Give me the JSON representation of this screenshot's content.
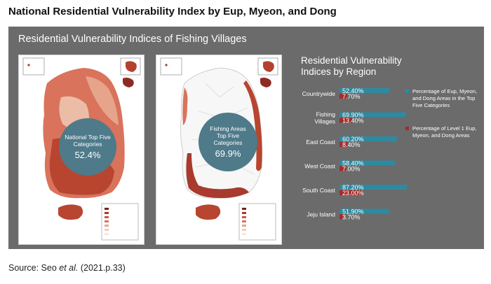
{
  "figure": {
    "title": "National Residential Vulnerability Index by Eup, Myeon, and Dong",
    "panel_title": "Residential Vulnerability Indices of Fishing Villages",
    "source_prefix": "Source: Seo ",
    "source_italic": "et al.",
    "source_suffix": " (2021.p.33)"
  },
  "maps": [
    {
      "circle_label": "National Top Five Categories",
      "circle_value": "52.4%"
    },
    {
      "circle_label": "Fishing Areas Top Five Categories",
      "circle_value": "69.9%"
    }
  ],
  "colors": {
    "teal": "#2e8aa0",
    "red": "#a52a2a",
    "map_dark": "#a83a2e",
    "map_light": "#e9b59d"
  },
  "chart_data": {
    "type": "bar",
    "orientation": "horizontal",
    "title": "Residential Vulnerability Indices by Region",
    "categories": [
      "Countrywide",
      "Fishing Villages",
      "East Coast",
      "West Coast",
      "South Coast",
      "Jeju Island"
    ],
    "series": [
      {
        "name": "Percentage of Eup, Myeon, and Dong Areas in the Top Five Categories",
        "values": [
          52.4,
          69.9,
          60.2,
          58.4,
          87.2,
          51.9
        ],
        "labels": [
          "52.40%",
          "69.90%",
          "60.20%",
          "58.40%",
          "87.20%",
          "51.90%"
        ],
        "color": "#2e8aa0"
      },
      {
        "name": "Percentage of Level 1 Eup, Myeon, and Dong Areas",
        "values": [
          7.7,
          13.4,
          8.4,
          7.0,
          23.0,
          3.7
        ],
        "labels": [
          "7.70%",
          "13.40%",
          "8.40%",
          "7.00%",
          "23.00%",
          "3.70%"
        ],
        "color": "#a52a2a"
      }
    ],
    "xlim": [
      0,
      100
    ],
    "legend_position": "right"
  }
}
